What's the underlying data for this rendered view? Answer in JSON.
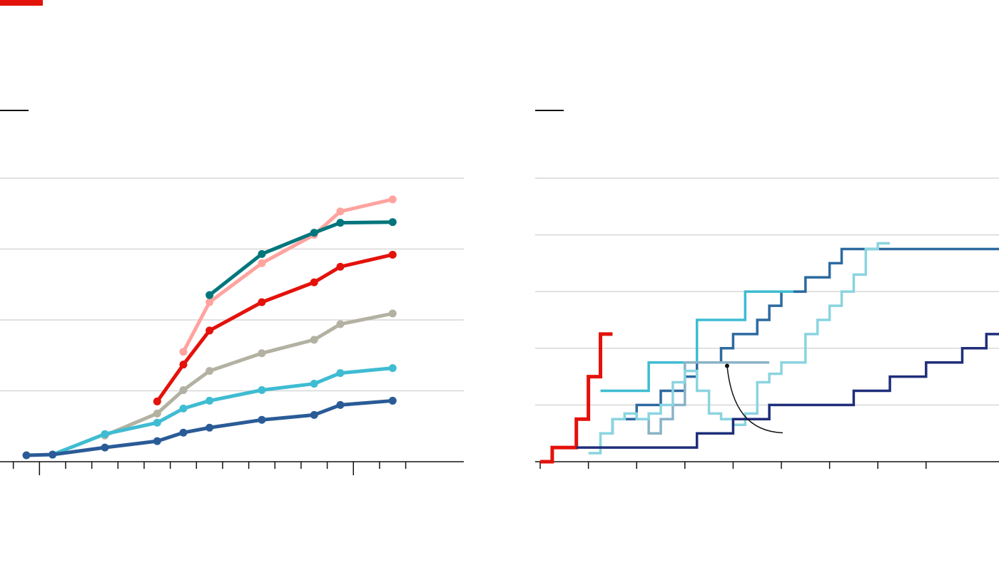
{
  "colors": {
    "brand": "#e3120b",
    "grid": "#d7d7d7",
    "axis": "#121212"
  },
  "chart_data": [
    {
      "type": "line",
      "grid": true,
      "x": [
        1,
        3,
        7,
        11,
        13,
        15,
        19,
        23,
        25,
        29
      ],
      "ylim": [
        0,
        4
      ],
      "series": [
        {
          "color": "#ffa39f",
          "values": [
            null,
            null,
            null,
            null,
            1.55,
            2.25,
            2.8,
            3.2,
            3.53,
            3.7
          ]
        },
        {
          "color": "#00767c",
          "values": [
            null,
            null,
            null,
            null,
            null,
            2.35,
            2.93,
            3.23,
            3.37,
            3.38
          ]
        },
        {
          "color": "#e3120b",
          "values": [
            null,
            null,
            null,
            0.85,
            1.37,
            1.85,
            2.25,
            2.53,
            2.75,
            2.92
          ]
        },
        {
          "color": "#b3b1a1",
          "values": [
            null,
            null,
            0.37,
            0.68,
            1.01,
            1.28,
            1.53,
            1.72,
            1.94,
            2.09
          ]
        },
        {
          "color": "#3ebcd2",
          "values": [
            null,
            0.1,
            0.39,
            0.55,
            0.75,
            0.86,
            1.01,
            1.1,
            1.25,
            1.32
          ]
        },
        {
          "color": "#2a5b97",
          "values": [
            0.09,
            0.1,
            0.2,
            0.29,
            0.41,
            0.48,
            0.59,
            0.66,
            0.8,
            0.86
          ]
        }
      ]
    },
    {
      "type": "line",
      "step": true,
      "grid": true,
      "ylim": [
        0,
        5
      ],
      "series": [
        {
          "color": "#e3120b",
          "x": [
            0,
            1,
            3,
            4,
            5,
            6
          ],
          "values": [
            0,
            0.25,
            0.75,
            1.5,
            2.25,
            2.25
          ]
        },
        {
          "color": "#2c6aa0",
          "x": [
            5,
            6,
            8,
            10,
            12,
            13,
            15,
            16,
            18,
            19,
            20,
            22,
            24,
            25,
            39
          ],
          "values": [
            0.5,
            0.75,
            1,
            1.25,
            1.5,
            1.75,
            2,
            2.25,
            2.5,
            2.75,
            3,
            3.25,
            3.5,
            3.75,
            3.75
          ]
        },
        {
          "color": "#3ebcd2",
          "x": [
            5,
            9,
            10,
            13,
            17,
            21
          ],
          "values": [
            1.25,
            1.75,
            1.75,
            2.5,
            3,
            3
          ]
        },
        {
          "color": "#8ab3c8",
          "x": [
            8,
            9,
            10,
            11,
            12,
            14,
            16,
            19
          ],
          "values": [
            0.75,
            0.5,
            0.75,
            1,
            1.75,
            1.75,
            1.75,
            1.75
          ]
        },
        {
          "color": "#8ad4e0",
          "x": [
            4,
            5,
            6,
            7,
            8,
            9,
            10,
            11,
            12,
            13,
            14,
            15,
            16,
            17,
            18,
            19,
            20,
            22,
            23,
            24,
            25,
            26,
            27,
            28,
            29
          ],
          "values": [
            0.15,
            0.5,
            0.75,
            0.85,
            0.75,
            0.85,
            1,
            1.4,
            1.6,
            1.25,
            0.85,
            0.75,
            0.65,
            0.85,
            1.4,
            1.55,
            1.75,
            2.25,
            2.5,
            2.75,
            3,
            3.3,
            3.75,
            3.85,
            3.85
          ]
        },
        {
          "color": "#1f2e7a",
          "x": [
            3,
            13,
            16,
            18,
            19,
            23,
            26,
            29,
            32,
            35,
            37,
            39,
            40
          ],
          "values": [
            0.25,
            0.5,
            0.75,
            0.75,
            1,
            1,
            1.25,
            1.5,
            1.75,
            2,
            2.25,
            2.25,
            2.25
          ]
        }
      ],
      "annotation_marker": {
        "x": 15.5,
        "y": 1.69
      }
    }
  ]
}
